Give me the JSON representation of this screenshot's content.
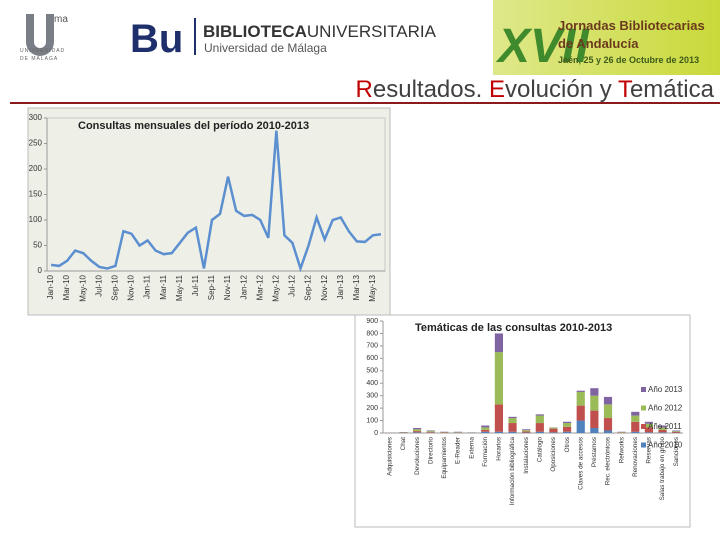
{
  "header": {
    "logo_ma": "ma",
    "logo_university": [
      "UNIVERSIDAD",
      "DE MÁLAGA"
    ],
    "bu": "Bu",
    "library_bold": "BIBLIOTECA",
    "library_light": "UNIVERSITARIA",
    "library_sub": "Universidad de Málaga",
    "event_number": "XVII",
    "event_title": [
      "Jornadas Bibliotecarias",
      "de Andalucía"
    ],
    "event_date": "Jaén, 25 y 26 de Octubre de 2013"
  },
  "title_parts": [
    "R",
    "esultados. ",
    "E",
    "volución y ",
    "T",
    "emática"
  ],
  "chart_data": [
    {
      "type": "line",
      "title": "Consultas mensuales del período 2010-2013",
      "color": "#5b8fd0",
      "categories": [
        "Jan-10",
        null,
        "Mar-10",
        null,
        "May-10",
        null,
        "Jul-10",
        null,
        "Sep-10",
        null,
        "Nov-10",
        null,
        "Jan-11",
        null,
        "Mar-11",
        null,
        "May-11",
        null,
        "Jul-11",
        null,
        "Sep-11",
        null,
        "Nov-11",
        null,
        "Jan-12",
        null,
        "Mar-12",
        null,
        "May-12",
        null,
        "Jul-12",
        null,
        "Sep-12",
        null,
        "Nov-12",
        null,
        "Jan-13",
        null,
        "Mar-13",
        null,
        "May-13",
        null
      ],
      "values": [
        12,
        10,
        20,
        40,
        35,
        20,
        8,
        5,
        10,
        78,
        73,
        50,
        60,
        40,
        33,
        35,
        55,
        75,
        85,
        5,
        100,
        112,
        185,
        118,
        108,
        110,
        100,
        65,
        275,
        70,
        55,
        5,
        50,
        105,
        62,
        100,
        105,
        78,
        58,
        57,
        70,
        72
      ],
      "ylim": [
        0,
        300
      ],
      "yticks": [
        0,
        50,
        100,
        150,
        200,
        250,
        300
      ]
    },
    {
      "type": "stacked_bar",
      "title": "Temáticas de las consultas 2010-2013",
      "categories": [
        "Adquisiciones",
        "Chat",
        "Devoluciones",
        "Directorio",
        "Equipamientos",
        "E-Reader",
        "Externa",
        "Formación",
        "Horarios",
        "Información bibliográfica",
        "Instalaciones",
        "Catálogo",
        "Oposiciones",
        "Otros",
        "Claves de accesos",
        "Préstamos",
        "Rec. electrónicos",
        "Refworks",
        "Renovaciones",
        "Reservas",
        "Salas trabajo en grupo",
        "Sanciones"
      ],
      "series": [
        {
          "name": "Año 2010",
          "color": "#4f81bd",
          "values": [
            0,
            0,
            5,
            2,
            1,
            0,
            0,
            10,
            10,
            10,
            3,
            10,
            5,
            10,
            100,
            40,
            20,
            0,
            10,
            5,
            5,
            2
          ]
        },
        {
          "name": "Año 2011",
          "color": "#c0504d",
          "values": [
            1,
            2,
            10,
            5,
            3,
            2,
            1,
            15,
            220,
            70,
            10,
            70,
            30,
            40,
            120,
            140,
            100,
            3,
            80,
            40,
            20,
            6
          ]
        },
        {
          "name": "Año 2012",
          "color": "#9bbb59",
          "values": [
            1,
            3,
            15,
            8,
            3,
            4,
            2,
            20,
            420,
            40,
            10,
            60,
            8,
            30,
            110,
            120,
            110,
            4,
            50,
            30,
            20,
            6
          ]
        },
        {
          "name": "Año 2013",
          "color": "#8064a2",
          "values": [
            1,
            3,
            10,
            5,
            3,
            4,
            2,
            15,
            150,
            10,
            7,
            10,
            2,
            10,
            10,
            60,
            60,
            3,
            30,
            15,
            15,
            6
          ]
        }
      ],
      "ylim": [
        0,
        900
      ],
      "yticks": [
        0,
        100,
        200,
        300,
        400,
        500,
        600,
        700,
        800,
        900
      ]
    }
  ]
}
